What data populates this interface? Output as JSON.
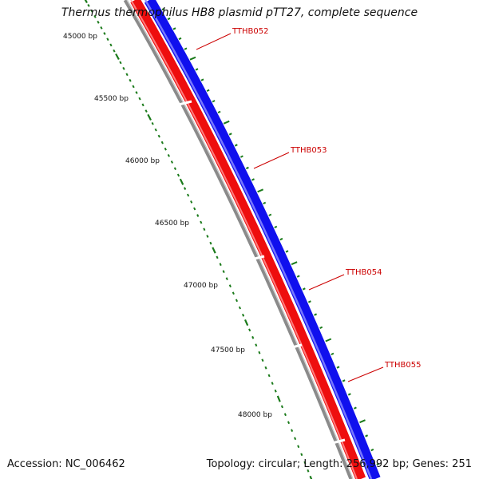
{
  "title": "Thermus thermophilus HB8 plasmid pTT27, complete sequence",
  "footer": {
    "accession": "Accession: NC_006462",
    "summary": "Topology: circular; Length: 256,992 bp; Genes: 251"
  },
  "scale": {
    "unit": "bp",
    "labels": [
      "45000 bp",
      "45500 bp",
      "46000 bp",
      "46500 bp",
      "47000 bp",
      "47500 bp",
      "48000 bp"
    ],
    "tick_color": "#1a7a1a"
  },
  "genes": [
    {
      "id": "TTHB052",
      "label": "TTHB052",
      "strand": "both"
    },
    {
      "id": "TTHB053",
      "label": "TTHB053",
      "strand": "both"
    },
    {
      "id": "TTHB054",
      "label": "TTHB054",
      "strand": "both"
    },
    {
      "id": "TTHB055",
      "label": "TTHB055",
      "strand": "both"
    }
  ],
  "colors": {
    "forward_strand": "#1010ee",
    "reverse_strand": "#ee0e0e",
    "backbone": "#8a8a8a",
    "label_text": "#cc0000"
  }
}
